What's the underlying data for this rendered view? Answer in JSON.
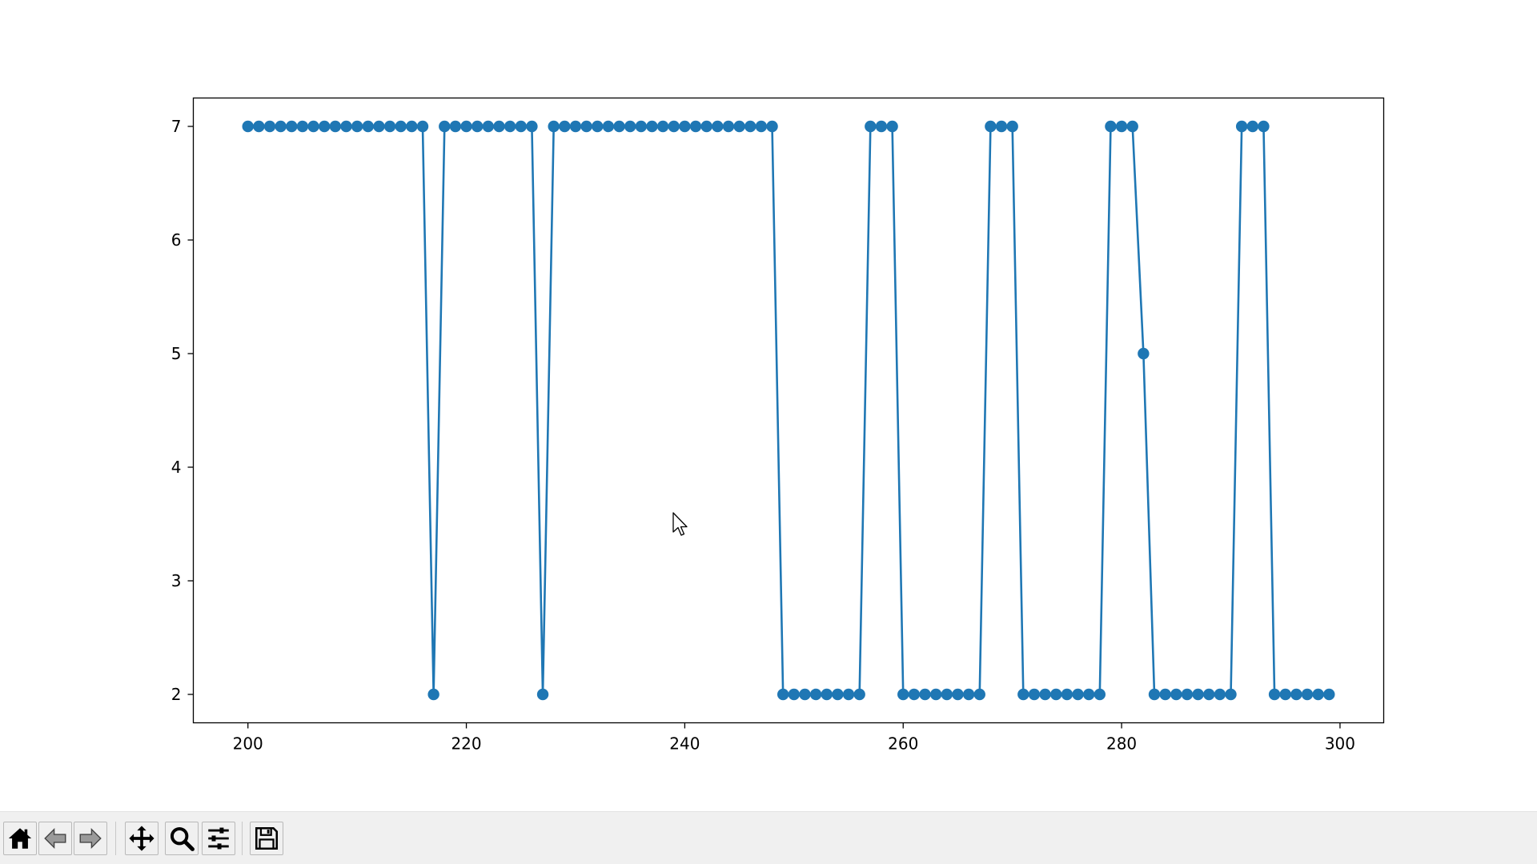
{
  "chart_data": {
    "type": "line",
    "markers": true,
    "title": "",
    "xlabel": "",
    "ylabel": "",
    "xlim": [
      195,
      304
    ],
    "ylim": [
      1.75,
      7.25
    ],
    "xticks": [
      200,
      220,
      240,
      260,
      280,
      300
    ],
    "yticks": [
      2,
      3,
      4,
      5,
      6,
      7
    ],
    "grid": false,
    "legend": "none",
    "line_color": "#1f77b4",
    "series": [
      {
        "x": [
          200,
          201,
          202,
          203,
          204,
          205,
          206,
          207,
          208,
          209,
          210,
          211,
          212,
          213,
          214,
          215,
          216,
          217,
          218,
          219,
          220,
          221,
          222,
          223,
          224,
          225,
          226,
          227,
          228,
          229,
          230,
          231,
          232,
          233,
          234,
          235,
          236,
          237,
          238,
          239,
          240,
          241,
          242,
          243,
          244,
          245,
          246,
          247,
          248,
          249,
          250,
          251,
          252,
          253,
          254,
          255,
          256,
          257,
          258,
          259,
          260,
          261,
          262,
          263,
          264,
          265,
          266,
          267,
          268,
          269,
          270,
          271,
          272,
          273,
          274,
          275,
          276,
          277,
          278,
          279,
          280,
          281,
          282,
          283,
          284,
          285,
          286,
          287,
          288,
          289,
          290,
          291,
          292,
          293,
          294,
          295,
          296,
          297,
          298,
          299
        ],
        "y": [
          7,
          7,
          7,
          7,
          7,
          7,
          7,
          7,
          7,
          7,
          7,
          7,
          7,
          7,
          7,
          7,
          7,
          2,
          7,
          7,
          7,
          7,
          7,
          7,
          7,
          7,
          7,
          2,
          7,
          7,
          7,
          7,
          7,
          7,
          7,
          7,
          7,
          7,
          7,
          7,
          7,
          7,
          7,
          7,
          7,
          7,
          7,
          7,
          7,
          2,
          2,
          2,
          2,
          2,
          2,
          2,
          2,
          7,
          7,
          7,
          2,
          2,
          2,
          2,
          2,
          2,
          2,
          2,
          7,
          7,
          7,
          2,
          2,
          2,
          2,
          2,
          2,
          2,
          2,
          7,
          7,
          7,
          5,
          2,
          2,
          2,
          2,
          2,
          2,
          2,
          2,
          7,
          7,
          7,
          2,
          2,
          2,
          2,
          2,
          2
        ]
      }
    ]
  },
  "toolbar": {
    "buttons": [
      {
        "id": "home",
        "icon": "home-icon"
      },
      {
        "id": "back",
        "icon": "arrow-left-icon"
      },
      {
        "id": "forward",
        "icon": "arrow-right-icon"
      },
      {
        "id": "pan",
        "icon": "move-icon"
      },
      {
        "id": "zoom",
        "icon": "zoom-icon"
      },
      {
        "id": "configure",
        "icon": "sliders-icon"
      },
      {
        "id": "save",
        "icon": "save-icon"
      }
    ]
  }
}
